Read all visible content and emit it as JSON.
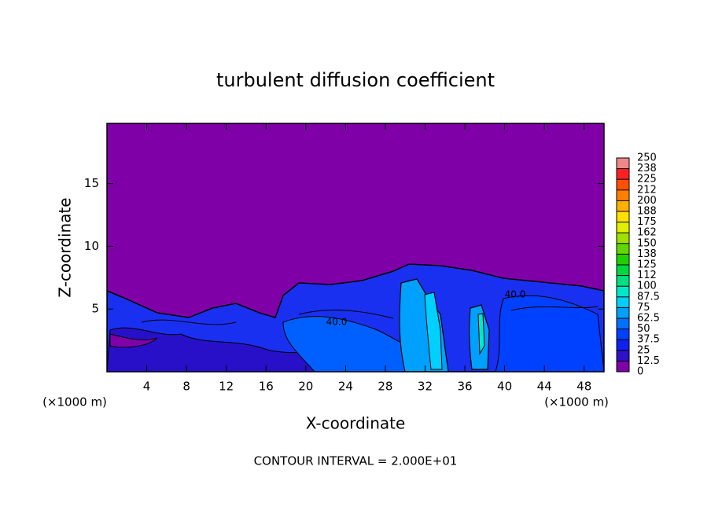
{
  "chart_data": {
    "type": "contour",
    "title": "turbulent diffusion coefficient",
    "x_label": "X-coordinate",
    "y_label": "Z-coordinate",
    "x_unit": "(×1000 m)",
    "y_unit": "(×1000 m)",
    "footer": "CONTOUR INTERVAL = 2.000E+01",
    "contour_labels": [
      "40.0",
      "40.0"
    ],
    "xlim": [
      0,
      50
    ],
    "xticks": [
      4,
      8,
      12,
      16,
      20,
      24,
      28,
      32,
      36,
      40,
      44,
      48
    ],
    "ylim": [
      0,
      19.8
    ],
    "yticks": [
      5,
      10,
      15
    ],
    "colorbar": {
      "ticks": [
        0,
        12.5,
        25,
        37.5,
        50,
        62.5,
        75,
        87.5,
        100,
        112,
        125,
        138,
        150,
        162,
        175,
        188,
        200,
        212,
        225,
        238,
        250
      ],
      "colors": [
        "#8000a8",
        "#3010c8",
        "#1020f0",
        "#0040ff",
        "#0070ff",
        "#00a0ff",
        "#00d0ff",
        "#00e8c8",
        "#00e080",
        "#00d840",
        "#20d000",
        "#60d800",
        "#a0e000",
        "#e0f000",
        "#ffe000",
        "#ffb000",
        "#ff8000",
        "#ff5000",
        "#ff2020",
        "#f08888"
      ]
    }
  }
}
